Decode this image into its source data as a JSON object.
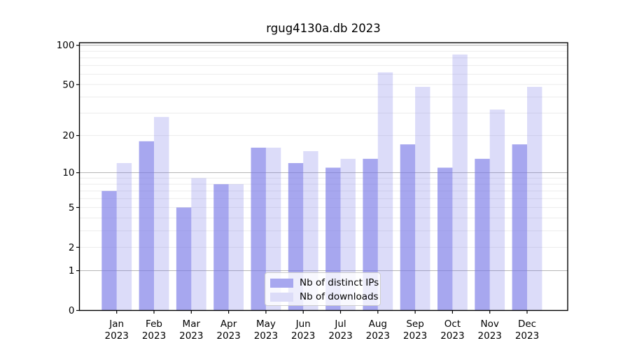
{
  "figure": {
    "title": "rgug4130a.db 2023"
  },
  "legend": {
    "items": [
      {
        "label": "Nb of distinct IPs",
        "color": "#a7a7ef"
      },
      {
        "label": "Nb of downloads",
        "color": "#dcdcf8"
      }
    ],
    "position": "lower center"
  },
  "chart_data": {
    "type": "bar",
    "title": "rgug4130a.db 2023",
    "categories": [
      "Jan 2023",
      "Feb 2023",
      "Mar 2023",
      "Apr 2023",
      "May 2023",
      "Jun 2023",
      "Jul 2023",
      "Aug 2023",
      "Sep 2023",
      "Oct 2023",
      "Nov 2023",
      "Dec 2023"
    ],
    "series": [
      {
        "name": "Nb of distinct IPs",
        "color": "rgba(120,120,230,0.65)",
        "values": [
          7,
          18,
          5,
          8,
          16,
          12,
          11,
          13,
          17,
          11,
          13,
          17
        ]
      },
      {
        "name": "Nb of downloads",
        "color": "rgba(120,120,230,0.26)",
        "values": [
          12,
          28,
          9,
          8,
          16,
          15,
          13,
          62,
          48,
          85,
          32,
          48
        ]
      }
    ],
    "xlabel": "",
    "ylabel": "",
    "yscale": "log1p",
    "ylim": [
      0,
      105
    ],
    "yticks": [
      100,
      50,
      20,
      10,
      5,
      2,
      1,
      0
    ],
    "ytick_labels": [
      "100",
      "50",
      "20",
      "10",
      "5",
      "2",
      "1",
      "0"
    ],
    "major_gridlines": [
      100,
      10,
      1
    ],
    "minor_gridlines": [
      90,
      80,
      70,
      60,
      50,
      40,
      30,
      20,
      9,
      8,
      7,
      6,
      5,
      4,
      3,
      2
    ],
    "grid": true,
    "legend_position": "lower center",
    "colors": {
      "grid_major": "#b3b3b3",
      "grid_minor": "#ebebeb",
      "spine": "#000000",
      "tick_text": "#000000"
    }
  }
}
